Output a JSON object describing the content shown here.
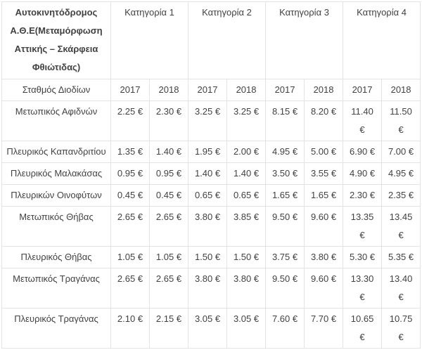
{
  "table": {
    "title": "Αυτοκινητόδρομος Α.Θ.Ε(Μεταμόρφωση Αττικής – Σκάρφεια Φθιώτιδας)",
    "categories": [
      "Κατηγορία 1",
      "Κατηγορία 2",
      "Κατηγορία 3",
      "Κατηγορία 4"
    ],
    "station_header": "Σταθμός Διοδίων",
    "years": [
      "2017",
      "2018"
    ],
    "rows": [
      {
        "station": "Μετωπικός Αφιδνών",
        "values": [
          "2.25 €",
          "2.30 €",
          "3.25 €",
          "3.25 €",
          "8.15 €",
          "8.20 €",
          "11.40 €",
          "11.50 €"
        ]
      },
      {
        "station": "Πλευρικός Καπανδριτίου",
        "values": [
          "1.35 €",
          "1.40 €",
          "1.95 €",
          "2.00 €",
          "4.95 €",
          "5.00 €",
          "6.90 €",
          "7.00 €"
        ]
      },
      {
        "station": "Πλευρικός Μαλακάσας",
        "values": [
          "0.95 €",
          "0.95 €",
          "1.40 €",
          "1.40 €",
          "3.50 €",
          "3.55 €",
          "4.90 €",
          "4.95 €"
        ]
      },
      {
        "station": "Πλευρικών Οινοφύτων",
        "values": [
          "0.45 €",
          "0.45 €",
          "0.65 €",
          "0.65 €",
          "1.65 €",
          "1.65 €",
          "2.30 €",
          "2.35 €"
        ]
      },
      {
        "station": "Μετωπικός Θήβας",
        "values": [
          "2.65 €",
          "2.65 €",
          "3.80 €",
          "3.85 €",
          "9.50 €",
          "9.60 €",
          "13.35 €",
          "13.45 €"
        ]
      },
      {
        "station": "Πλευρικός Θήβας",
        "values": [
          "1.05 €",
          "1.05 €",
          "1.50 €",
          "1.50 €",
          "3.75 €",
          "3.80 €",
          "5.30 €",
          "5.35 €"
        ]
      },
      {
        "station": "Μετωπικός Τραγάνας",
        "values": [
          "2.65 €",
          "2.65 €",
          "3.80 €",
          "3.80 €",
          "9.50 €",
          "9.60 €",
          "13.30 €",
          "13.40 €"
        ]
      },
      {
        "station": "Πλευρικός Τραγάνας",
        "values": [
          "2.10 €",
          "2.15 €",
          "3.05 €",
          "3.05 €",
          "7.60 €",
          "7.70 €",
          "10.65 €",
          "10.75 €"
        ]
      }
    ],
    "colors": {
      "background": "#ffffff",
      "border": "#e3e3e3",
      "text": "#424242"
    },
    "currency_symbol": "€"
  }
}
